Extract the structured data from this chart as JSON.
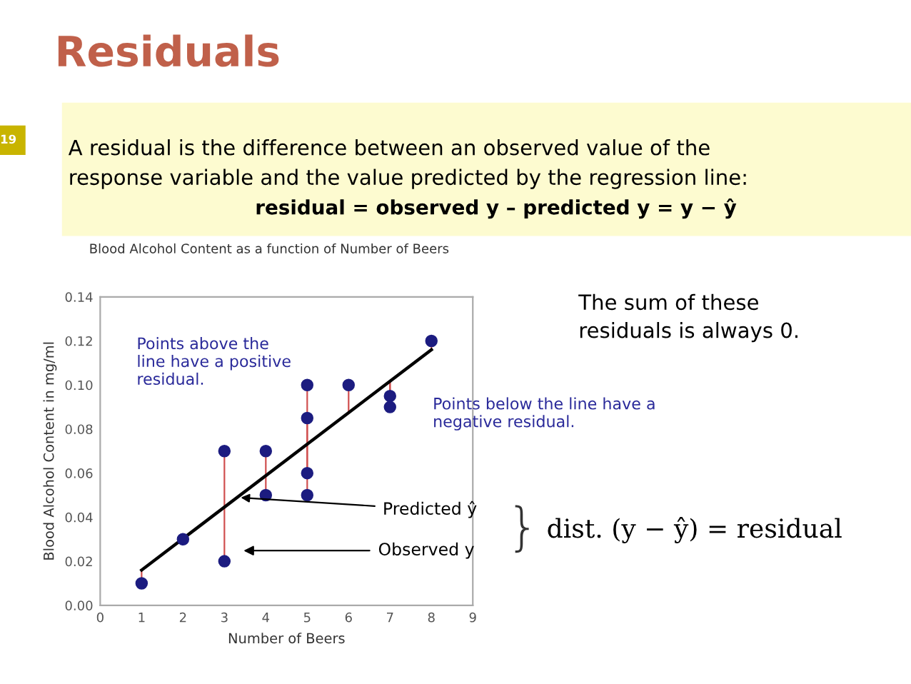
{
  "chart_data": {
    "type": "scatter",
    "title": "Residuals",
    "subtitle": "Blood Alcohol Content as a function of Number of Beers",
    "xlabel": "Number of Beers",
    "ylabel": "Blood Alcohol Content in mg/ml",
    "series": [
      {
        "color": "#1c1c80",
        "x": [
          1,
          2,
          3,
          3,
          4,
          4,
          5,
          5,
          5,
          5,
          6,
          7,
          7,
          8
        ],
        "values": [
          0.01,
          0.03,
          0.07,
          0.02,
          0.07,
          0.05,
          0.1,
          0.085,
          0.06,
          0.05,
          0.1,
          0.095,
          0.09,
          0.12
        ]
      },
      {
        "type": "line",
        "marker": "none",
        "color": "#000000",
        "x": [
          1,
          8
        ],
        "values": [
          0.016,
          0.116
        ]
      }
    ],
    "xlim": [
      0,
      9
    ],
    "xticks": [
      0,
      1,
      2,
      3,
      4,
      5,
      6,
      7,
      8,
      9
    ],
    "ylim": [
      0,
      0.14
    ],
    "yticks": [
      {
        "value": 0,
        "label": "0.00"
      },
      {
        "value": 0.02,
        "label": "0.02"
      },
      {
        "value": 0.04,
        "label": "0.04"
      },
      {
        "value": 0.06,
        "label": "0.06"
      },
      {
        "value": 0.08,
        "label": "0.08"
      },
      {
        "value": 0.1,
        "label": "0.10"
      },
      {
        "value": 0.12,
        "label": "0.12"
      },
      {
        "value": 0.14,
        "label": "0.14"
      }
    ],
    "marker": "circle",
    "grid": false,
    "legend": false,
    "annotations": [
      "19",
      "A residual is the difference between an observed value of the\nresponse variable and the value predicted by the regression line:",
      "residual = observed y – predicted y = y − ŷ",
      "The sum of these\nresiduals is always 0.",
      "Points above the\nline have a positive\nresidual.",
      "Points below the line have a\nnegative residual.",
      {
        "text": "Predicted ŷ",
        "x": 3.3,
        "y": 0.049
      },
      "Observed y",
      "}",
      "dist. (y − ŷ) = residual"
    ]
  }
}
